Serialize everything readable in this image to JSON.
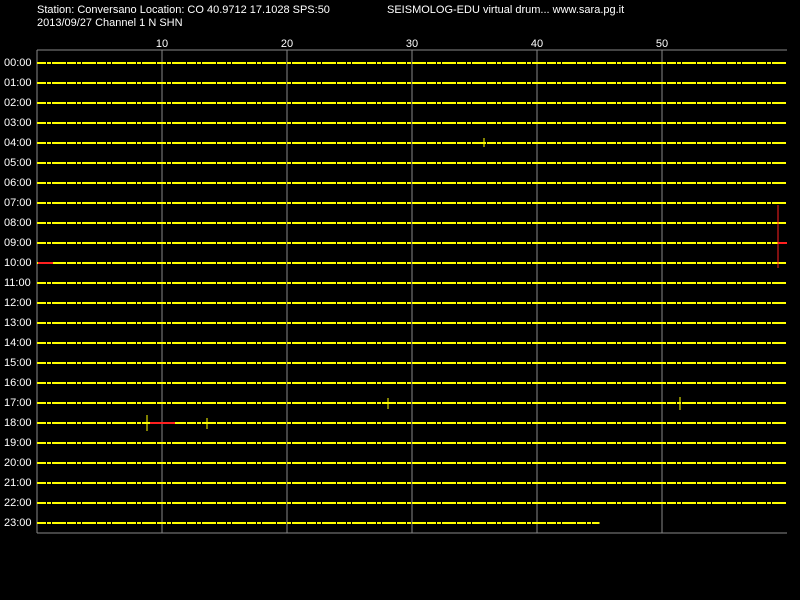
{
  "header": {
    "station": "Station: Conversano Location: CO 40.9712 17.1028 SPS:50",
    "program": "SEISMOLOG-EDU virtual drum... www.sara.pg.it",
    "date_channel": "2013/09/27  Channel 1 N SHN"
  },
  "chart_data": {
    "type": "drum",
    "xlim": [
      0,
      60
    ],
    "xticks": [
      10,
      20,
      30,
      40,
      50
    ],
    "grid": true,
    "color": "#ffff00",
    "rows": [
      {
        "label": "00:00",
        "end": 60
      },
      {
        "label": "01:00",
        "end": 60
      },
      {
        "label": "02:00",
        "end": 60
      },
      {
        "label": "03:00",
        "end": 60
      },
      {
        "label": "04:00",
        "end": 60
      },
      {
        "label": "05:00",
        "end": 60
      },
      {
        "label": "06:00",
        "end": 60
      },
      {
        "label": "07:00",
        "end": 60
      },
      {
        "label": "08:00",
        "end": 60
      },
      {
        "label": "09:00",
        "end": 60
      },
      {
        "label": "10:00",
        "end": 60
      },
      {
        "label": "11:00",
        "end": 60
      },
      {
        "label": "12:00",
        "end": 60
      },
      {
        "label": "13:00",
        "end": 60
      },
      {
        "label": "14:00",
        "end": 60
      },
      {
        "label": "15:00",
        "end": 60
      },
      {
        "label": "16:00",
        "end": 60
      },
      {
        "label": "17:00",
        "end": 60
      },
      {
        "label": "18:00",
        "end": 60
      },
      {
        "label": "19:00",
        "end": 60
      },
      {
        "label": "20:00",
        "end": 60
      },
      {
        "label": "21:00",
        "end": 60
      },
      {
        "label": "22:00",
        "end": 60
      },
      {
        "label": "23:00",
        "end": 45
      }
    ]
  }
}
